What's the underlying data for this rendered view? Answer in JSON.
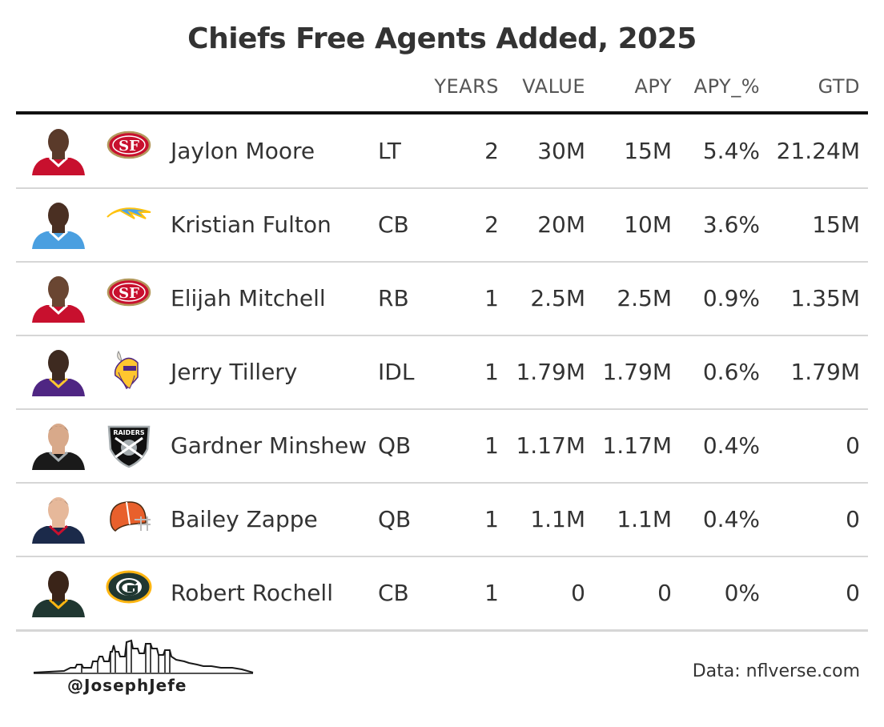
{
  "title": "Chiefs Free Agents Added, 2025",
  "columns": {
    "years": "YEARS",
    "value": "VALUE",
    "apy": "APY",
    "apy_pct": "APY_%",
    "gtd": "GTD"
  },
  "rows": [
    {
      "name": "Jaylon Moore",
      "pos": "LT",
      "years": "2",
      "value": "30M",
      "apy": "15M",
      "apy_pct": "5.4%",
      "gtd": "21.24M",
      "team": "49ers",
      "team_logo": "niners-logo",
      "jersey_color": "#c8102e",
      "jersey_trim": "#ffffff",
      "skin": "#5a3a2a"
    },
    {
      "name": "Kristian Fulton",
      "pos": "CB",
      "years": "2",
      "value": "20M",
      "apy": "10M",
      "apy_pct": "3.6%",
      "gtd": "15M",
      "team": "Chargers",
      "team_logo": "chargers-bolt-logo",
      "jersey_color": "#4a9fe0",
      "jersey_trim": "#ffffff",
      "skin": "#4a2f22"
    },
    {
      "name": "Elijah Mitchell",
      "pos": "RB",
      "years": "1",
      "value": "2.5M",
      "apy": "2.5M",
      "apy_pct": "0.9%",
      "gtd": "1.35M",
      "team": "49ers",
      "team_logo": "niners-logo",
      "jersey_color": "#c8102e",
      "jersey_trim": "#ffffff",
      "skin": "#6a4632"
    },
    {
      "name": "Jerry Tillery",
      "pos": "IDL",
      "years": "1",
      "value": "1.79M",
      "apy": "1.79M",
      "apy_pct": "0.6%",
      "gtd": "1.79M",
      "team": "Vikings",
      "team_logo": "vikings-logo",
      "jersey_color": "#4f2683",
      "jersey_trim": "#ffc62f",
      "skin": "#3e2a20"
    },
    {
      "name": "Gardner Minshew",
      "pos": "QB",
      "years": "1",
      "value": "1.17M",
      "apy": "1.17M",
      "apy_pct": "0.4%",
      "gtd": "0",
      "team": "Raiders",
      "team_logo": "raiders-shield-logo",
      "jersey_color": "#1a1a1a",
      "jersey_trim": "#a5acaf",
      "skin": "#d8a98a"
    },
    {
      "name": "Bailey Zappe",
      "pos": "QB",
      "years": "1",
      "value": "1.1M",
      "apy": "1.1M",
      "apy_pct": "0.4%",
      "gtd": "0",
      "team": "Browns",
      "team_logo": "browns-helmet-logo",
      "jersey_color": "#1b2a4a",
      "jersey_trim": "#c8102e",
      "skin": "#e6b89a"
    },
    {
      "name": "Robert Rochell",
      "pos": "CB",
      "years": "1",
      "value": "0",
      "apy": "0",
      "apy_pct": "0%",
      "gtd": "0",
      "team": "Packers",
      "team_logo": "packers-g-logo",
      "jersey_color": "#203731",
      "jersey_trim": "#ffb612",
      "skin": "#3a2418"
    }
  ],
  "credit": "@JosephJefe",
  "source": "Data: nflverse.com"
}
